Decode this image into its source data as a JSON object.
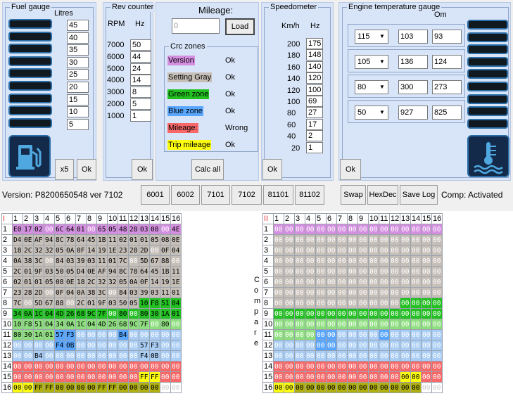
{
  "fuel": {
    "title": "Fuel gauge",
    "litres_label": "Litres",
    "values": [
      "45",
      "40",
      "35",
      "30",
      "25",
      "20",
      "15",
      "10",
      "5"
    ],
    "x5_label": "x5",
    "ok_label": "Ok",
    "icon": "fuel-pump-icon"
  },
  "rev": {
    "title": "Rev counter",
    "rpm_label": "RPM",
    "hz_label": "Hz",
    "rpm": [
      "7000",
      "6000",
      "5000",
      "4000",
      "3000",
      "2000",
      "1000"
    ],
    "hz": [
      "50",
      "44",
      "24",
      "14",
      "8",
      "5",
      "1"
    ],
    "ok_label": "Ok"
  },
  "mileage": {
    "title": "Mileage:",
    "placeholder": "0",
    "load_label": "Load",
    "calc_label": "Calc all"
  },
  "crc": {
    "title": "Crc zones",
    "zones": [
      {
        "label": "Version",
        "status": "Ok",
        "color": "#d58fe0"
      },
      {
        "label": "Setting Gray",
        "status": "Ok",
        "color": "#c6bfb8"
      },
      {
        "label": "Green zone",
        "status": "Ok",
        "color": "#22c020"
      },
      {
        "label": "Blue zone",
        "status": "Ok",
        "color": "#58a6ff"
      },
      {
        "label": "Mileage:",
        "status": "Wrong",
        "color": "#f86868"
      },
      {
        "label": "Trip mileage",
        "status": "Ok",
        "color": "#fdfd10"
      }
    ]
  },
  "speed": {
    "title": "Speedometer",
    "kmh_label": "Km/h",
    "hz_label": "Hz",
    "kmh": [
      "200",
      "180",
      "160",
      "140",
      "120",
      "100",
      "80",
      "60",
      "40",
      "20"
    ],
    "hz": [
      "175",
      "148",
      "140",
      "120",
      "100",
      "69",
      "27",
      "17",
      "2",
      "1"
    ],
    "ok_label": "Ok"
  },
  "temp": {
    "title": "Engine temperature gauge",
    "om_label": "Om",
    "rows": [
      {
        "select": "115",
        "a": "103",
        "b": "93"
      },
      {
        "select": "105",
        "a": "136",
        "b": "124"
      },
      {
        "select": "80",
        "a": "300",
        "b": "273"
      },
      {
        "select": "50",
        "a": "927",
        "b": "825"
      }
    ],
    "ok_label": "Ok",
    "icon": "coolant-temperature-icon"
  },
  "toolbar": {
    "version": "Version: P8200650548 ver 7102",
    "buttons": [
      "6001",
      "6002",
      "7101",
      "7102",
      "81101",
      "81102"
    ],
    "swap": "Swap",
    "hexdec": "HexDec",
    "savelog": "Save Log",
    "comp": "Comp: Activated"
  },
  "compare_letters": [
    "C",
    "o",
    "m",
    "p",
    "a",
    "r",
    "e"
  ],
  "grid_headers": [
    "1",
    "2",
    "3",
    "4",
    "5",
    "6",
    "7",
    "8",
    "9",
    "10",
    "11",
    "12",
    "13",
    "14",
    "15",
    "16"
  ],
  "gridI": {
    "marker": "I",
    "rows": [
      [
        "E0",
        "17",
        "02",
        "00",
        "6C",
        "64",
        "01",
        "00",
        "65",
        "05",
        "48",
        "28",
        "03",
        "08",
        "00",
        "4E"
      ],
      [
        "D4",
        "0E",
        "AF",
        "94",
        "8C",
        "78",
        "64",
        "45",
        "1B",
        "11",
        "02",
        "01",
        "01",
        "05",
        "08",
        "0E"
      ],
      [
        "18",
        "2C",
        "32",
        "32",
        "05",
        "0A",
        "0F",
        "14",
        "19",
        "1E",
        "23",
        "28",
        "2D",
        "00",
        "0F",
        "04"
      ],
      [
        "0A",
        "38",
        "3C",
        "00",
        "84",
        "03",
        "39",
        "03",
        "11",
        "01",
        "7C",
        "00",
        "5D",
        "67",
        "88",
        "00"
      ],
      [
        "2C",
        "01",
        "9F",
        "03",
        "50",
        "05",
        "D4",
        "0E",
        "AF",
        "94",
        "8C",
        "78",
        "64",
        "45",
        "1B",
        "11"
      ],
      [
        "02",
        "01",
        "01",
        "05",
        "08",
        "0E",
        "18",
        "2C",
        "32",
        "32",
        "05",
        "0A",
        "0F",
        "14",
        "19",
        "1E"
      ],
      [
        "23",
        "28",
        "2D",
        "00",
        "0F",
        "04",
        "0A",
        "38",
        "3C",
        "00",
        "84",
        "03",
        "39",
        "03",
        "11",
        "01"
      ],
      [
        "7C",
        "00",
        "5D",
        "67",
        "88",
        "00",
        "2C",
        "01",
        "9F",
        "03",
        "50",
        "05",
        "10",
        "F8",
        "51",
        "04"
      ],
      [
        "34",
        "0A",
        "1C",
        "04",
        "4D",
        "26",
        "68",
        "9C",
        "7F",
        "00",
        "80",
        "00",
        "80",
        "30",
        "1A",
        "01"
      ],
      [
        "10",
        "F8",
        "51",
        "04",
        "34",
        "0A",
        "1C",
        "04",
        "4D",
        "26",
        "68",
        "9C",
        "7F",
        "00",
        "80",
        "00"
      ],
      [
        "80",
        "30",
        "1A",
        "01",
        "57",
        "F3",
        "00",
        "00",
        "00",
        "00",
        "B4",
        "00",
        "00",
        "00",
        "00",
        "00"
      ],
      [
        "00",
        "00",
        "00",
        "00",
        "F4",
        "0B",
        "00",
        "00",
        "00",
        "00",
        "00",
        "00",
        "57",
        "F3",
        "00",
        "00"
      ],
      [
        "00",
        "00",
        "B4",
        "00",
        "00",
        "00",
        "00",
        "00",
        "00",
        "00",
        "00",
        "00",
        "F4",
        "0B",
        "00",
        "00"
      ],
      [
        "00",
        "00",
        "00",
        "00",
        "00",
        "00",
        "00",
        "00",
        "00",
        "00",
        "00",
        "00",
        "00",
        "00",
        "00",
        "00"
      ],
      [
        "00",
        "00",
        "00",
        "00",
        "00",
        "00",
        "00",
        "00",
        "00",
        "00",
        "00",
        "00",
        "FF",
        "FF",
        "00",
        "00"
      ],
      [
        "00",
        "00",
        "FF",
        "FF",
        "00",
        "00",
        "00",
        "00",
        "FF",
        "FF",
        "00",
        "00",
        "00",
        "00",
        "00",
        "00"
      ]
    ]
  },
  "gridII": {
    "marker": "II",
    "rows": [
      [
        "00",
        "00",
        "00",
        "00",
        "00",
        "00",
        "00",
        "00",
        "00",
        "00",
        "00",
        "00",
        "00",
        "00",
        "00",
        "00"
      ],
      [
        "00",
        "00",
        "00",
        "00",
        "00",
        "00",
        "00",
        "00",
        "00",
        "00",
        "00",
        "00",
        "00",
        "00",
        "00",
        "00"
      ],
      [
        "00",
        "00",
        "00",
        "00",
        "00",
        "00",
        "00",
        "00",
        "00",
        "00",
        "00",
        "00",
        "00",
        "00",
        "00",
        "00"
      ],
      [
        "00",
        "00",
        "00",
        "00",
        "00",
        "00",
        "00",
        "00",
        "00",
        "00",
        "00",
        "00",
        "00",
        "00",
        "00",
        "00"
      ],
      [
        "00",
        "00",
        "00",
        "00",
        "00",
        "00",
        "00",
        "00",
        "00",
        "00",
        "00",
        "00",
        "00",
        "00",
        "00",
        "00"
      ],
      [
        "00",
        "00",
        "00",
        "00",
        "00",
        "00",
        "00",
        "00",
        "00",
        "00",
        "00",
        "00",
        "00",
        "00",
        "00",
        "00"
      ],
      [
        "00",
        "00",
        "00",
        "00",
        "00",
        "00",
        "00",
        "00",
        "00",
        "00",
        "00",
        "00",
        "00",
        "00",
        "00",
        "00"
      ],
      [
        "00",
        "00",
        "00",
        "00",
        "00",
        "00",
        "00",
        "00",
        "00",
        "00",
        "00",
        "00",
        "00",
        "00",
        "00",
        "00"
      ],
      [
        "00",
        "00",
        "00",
        "00",
        "00",
        "00",
        "00",
        "00",
        "00",
        "00",
        "00",
        "00",
        "00",
        "00",
        "00",
        "00"
      ],
      [
        "00",
        "00",
        "00",
        "00",
        "00",
        "00",
        "00",
        "00",
        "00",
        "00",
        "00",
        "00",
        "00",
        "00",
        "00",
        "00"
      ],
      [
        "00",
        "00",
        "00",
        "00",
        "00",
        "00",
        "00",
        "00",
        "00",
        "00",
        "00",
        "00",
        "00",
        "00",
        "00",
        "00"
      ],
      [
        "00",
        "00",
        "00",
        "00",
        "00",
        "00",
        "00",
        "00",
        "00",
        "00",
        "00",
        "00",
        "00",
        "00",
        "00",
        "00"
      ],
      [
        "00",
        "00",
        "00",
        "00",
        "00",
        "00",
        "00",
        "00",
        "00",
        "00",
        "00",
        "00",
        "00",
        "00",
        "00",
        "00"
      ],
      [
        "00",
        "00",
        "00",
        "00",
        "00",
        "00",
        "00",
        "00",
        "00",
        "00",
        "00",
        "00",
        "00",
        "00",
        "00",
        "00"
      ],
      [
        "00",
        "00",
        "00",
        "00",
        "00",
        "00",
        "00",
        "00",
        "00",
        "00",
        "00",
        "00",
        "00",
        "00",
        "00",
        "00"
      ],
      [
        "00",
        "00",
        "00",
        "00",
        "00",
        "00",
        "00",
        "00",
        "00",
        "00",
        "00",
        "00",
        "00",
        "00",
        "00",
        "00"
      ]
    ]
  },
  "zone_colors": {
    "version": "#d58fe0",
    "gray": "#c6bfb8",
    "green": "#22c020",
    "lightgreen": "#8fdf80",
    "blue": "#58a6ff",
    "lightblue": "#a9cdf5",
    "red": "#f86868",
    "yellow": "#fdfd10",
    "olive": "#b0b010"
  }
}
